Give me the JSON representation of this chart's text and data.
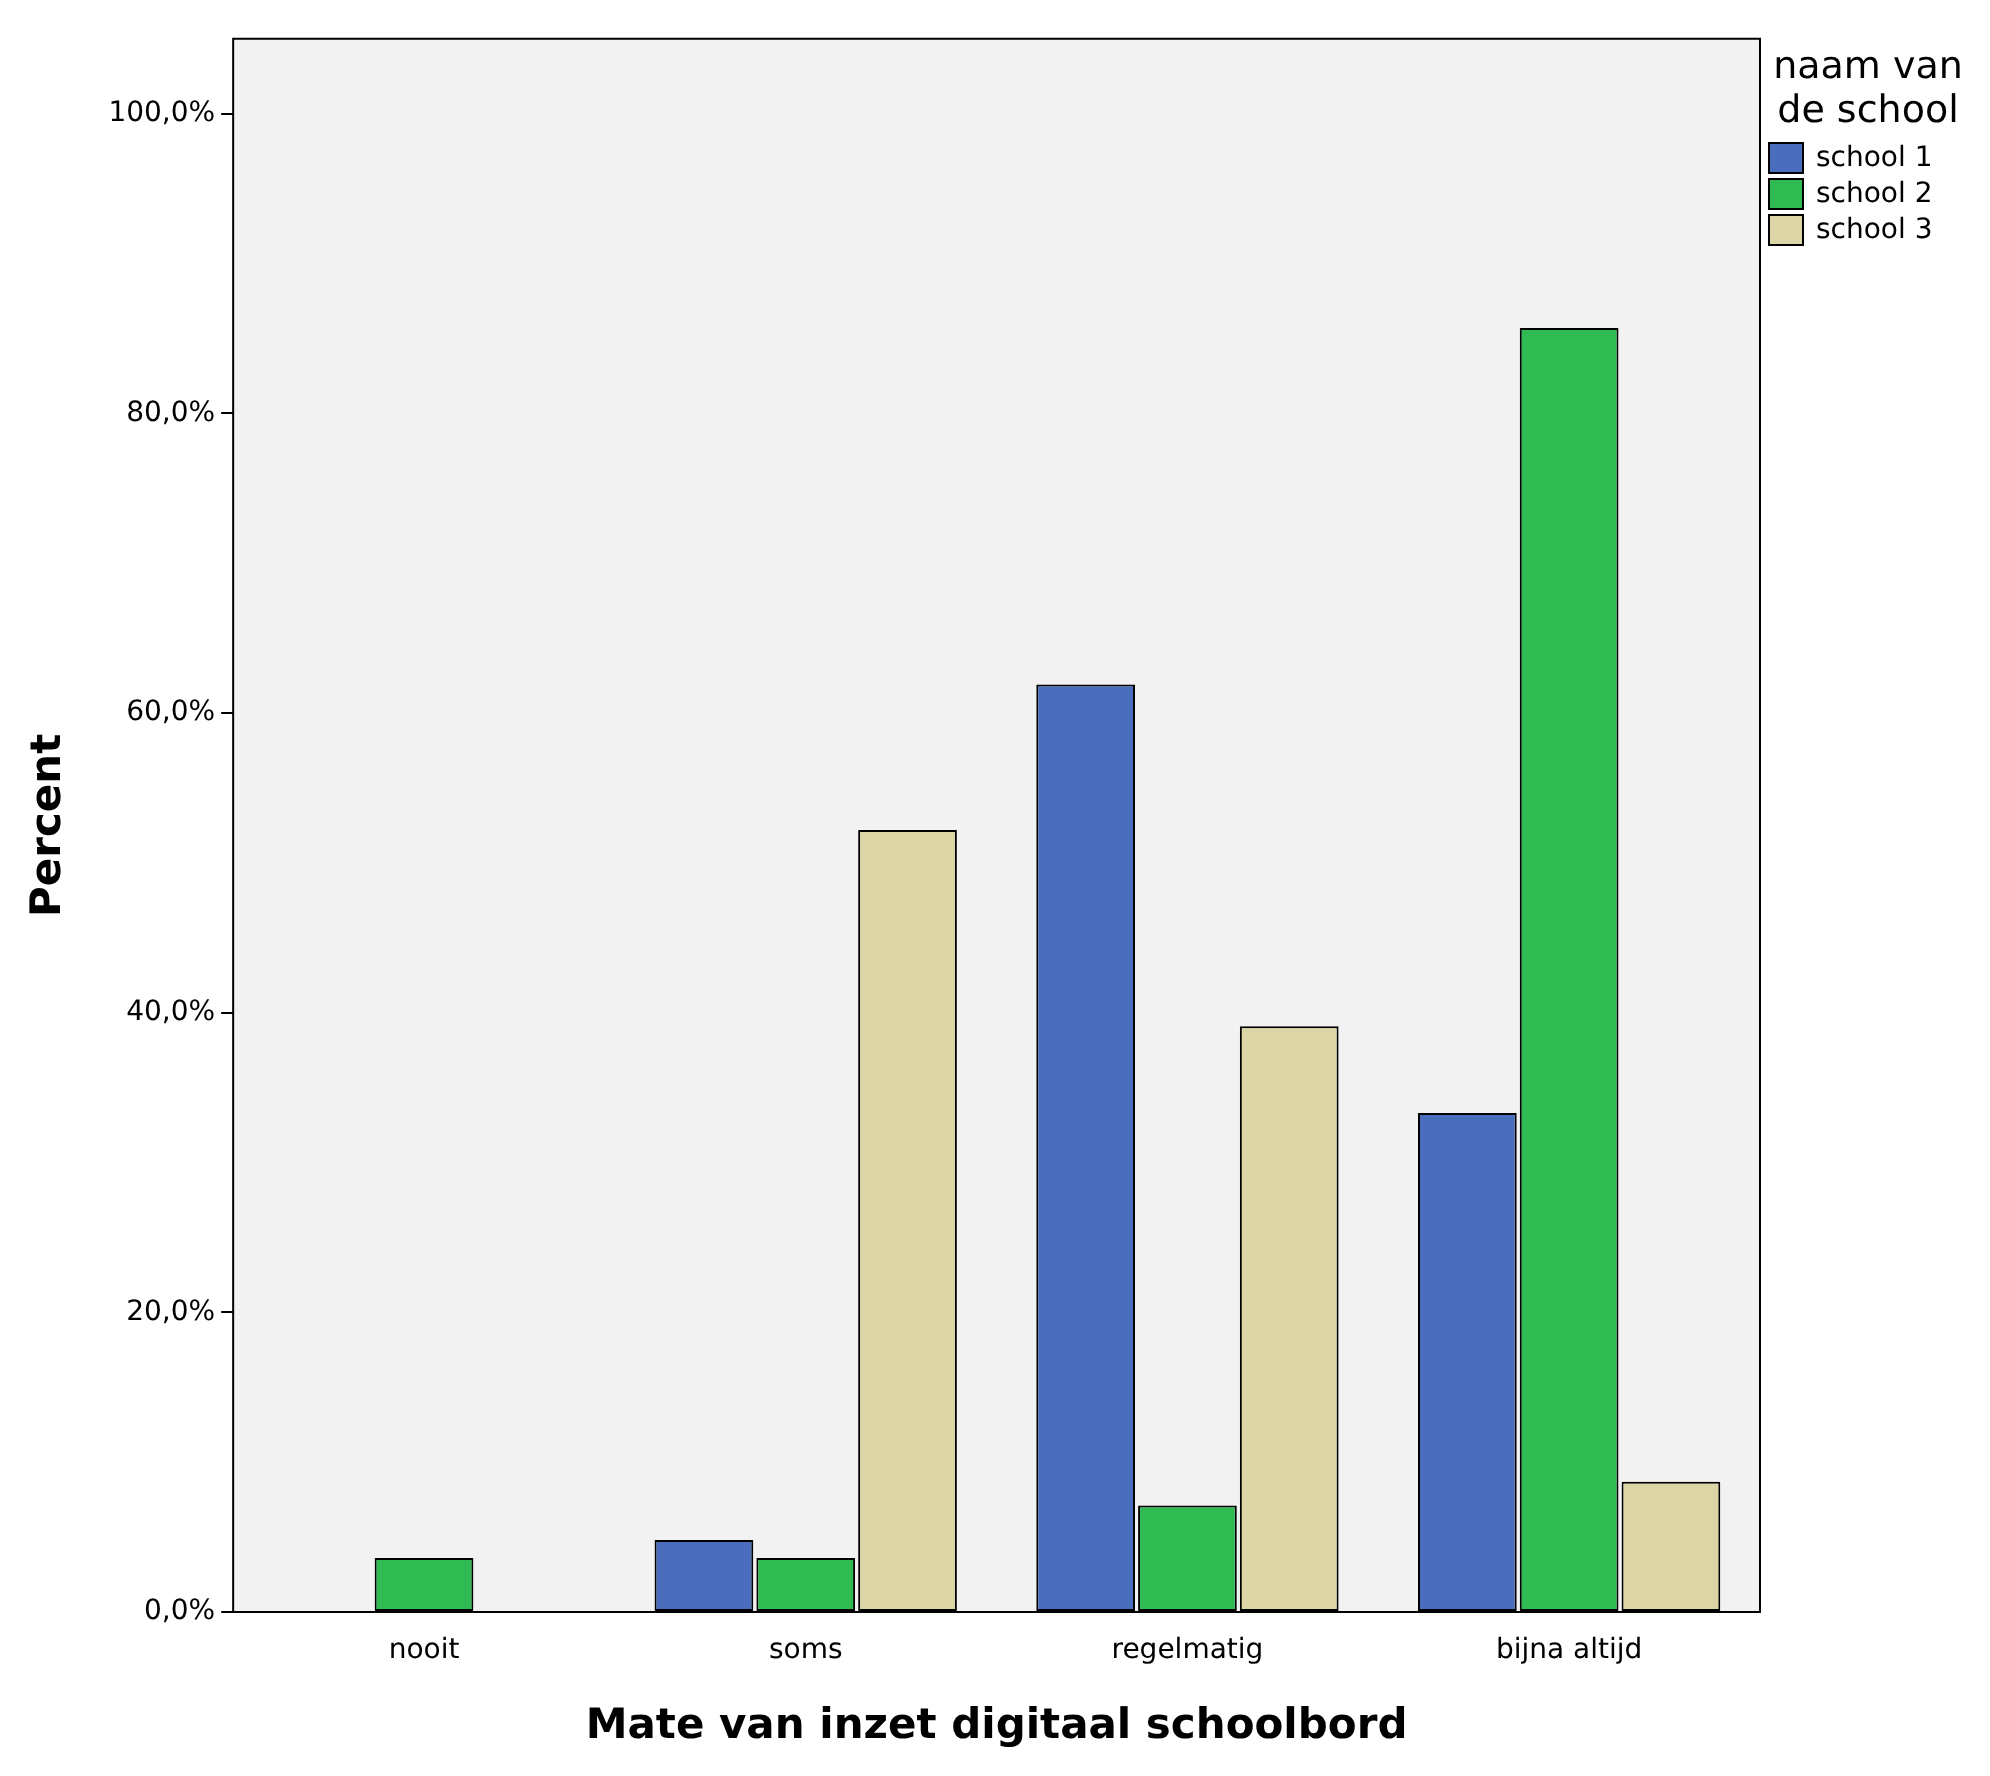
{
  "chart_data": {
    "type": "bar",
    "xlabel": "Mate van inzet digitaal schoolbord",
    "ylabel": "Percent",
    "legend_title": "naam van de school",
    "legend": "right",
    "grid": false,
    "categories": [
      "nooit",
      "soms",
      "regelmatig",
      "bijna altijd"
    ],
    "ylim": [
      0,
      105
    ],
    "yticks": [
      {
        "value": 0,
        "label": "0,0%"
      },
      {
        "value": 20,
        "label": "20,0%"
      },
      {
        "value": 40,
        "label": "40,0%"
      },
      {
        "value": 60,
        "label": "60,0%"
      },
      {
        "value": 80,
        "label": "80,0%"
      },
      {
        "value": 100,
        "label": "100,0%"
      }
    ],
    "series": [
      {
        "name": "school 1",
        "color": "#4a6ebd",
        "values": [
          0,
          4.8,
          61.9,
          33.3
        ]
      },
      {
        "name": "school 2",
        "color": "#2fbb52",
        "values": [
          3.6,
          3.6,
          7.1,
          85.7
        ]
      },
      {
        "name": "school 3",
        "color": "#dcd5a5",
        "values": [
          0,
          52.2,
          39.1,
          8.7
        ]
      }
    ]
  }
}
